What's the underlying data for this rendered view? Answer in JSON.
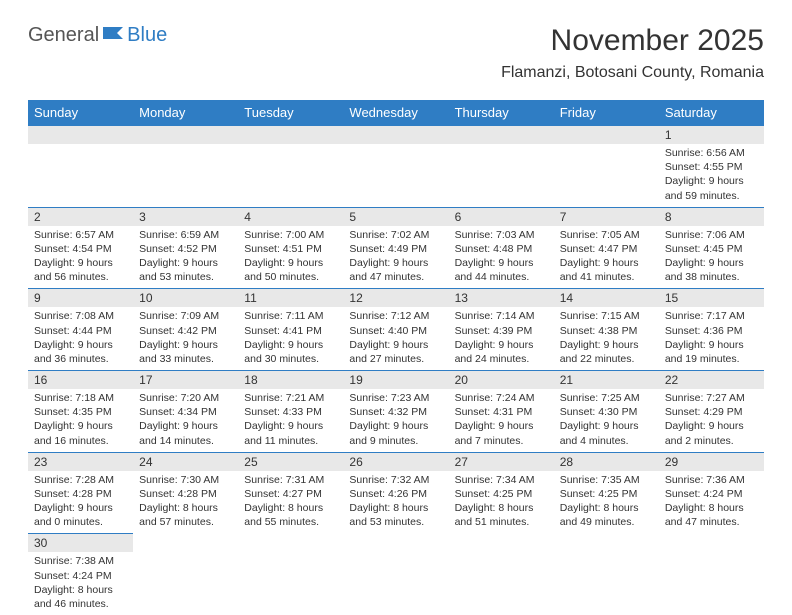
{
  "logo": {
    "part1": "General",
    "part2": "Blue"
  },
  "title": "November 2025",
  "location": "Flamanzi, Botosani County, Romania",
  "colors": {
    "header_bg": "#2f7dc4",
    "header_text": "#ffffff",
    "daynum_bg": "#e8e8e8",
    "border": "#2f7dc4"
  },
  "daysOfWeek": [
    "Sunday",
    "Monday",
    "Tuesday",
    "Wednesday",
    "Thursday",
    "Friday",
    "Saturday"
  ],
  "weeks": [
    [
      null,
      null,
      null,
      null,
      null,
      null,
      {
        "n": "1",
        "sr": "Sunrise: 6:56 AM",
        "ss": "Sunset: 4:55 PM",
        "d1": "Daylight: 9 hours",
        "d2": "and 59 minutes."
      }
    ],
    [
      {
        "n": "2",
        "sr": "Sunrise: 6:57 AM",
        "ss": "Sunset: 4:54 PM",
        "d1": "Daylight: 9 hours",
        "d2": "and 56 minutes."
      },
      {
        "n": "3",
        "sr": "Sunrise: 6:59 AM",
        "ss": "Sunset: 4:52 PM",
        "d1": "Daylight: 9 hours",
        "d2": "and 53 minutes."
      },
      {
        "n": "4",
        "sr": "Sunrise: 7:00 AM",
        "ss": "Sunset: 4:51 PM",
        "d1": "Daylight: 9 hours",
        "d2": "and 50 minutes."
      },
      {
        "n": "5",
        "sr": "Sunrise: 7:02 AM",
        "ss": "Sunset: 4:49 PM",
        "d1": "Daylight: 9 hours",
        "d2": "and 47 minutes."
      },
      {
        "n": "6",
        "sr": "Sunrise: 7:03 AM",
        "ss": "Sunset: 4:48 PM",
        "d1": "Daylight: 9 hours",
        "d2": "and 44 minutes."
      },
      {
        "n": "7",
        "sr": "Sunrise: 7:05 AM",
        "ss": "Sunset: 4:47 PM",
        "d1": "Daylight: 9 hours",
        "d2": "and 41 minutes."
      },
      {
        "n": "8",
        "sr": "Sunrise: 7:06 AM",
        "ss": "Sunset: 4:45 PM",
        "d1": "Daylight: 9 hours",
        "d2": "and 38 minutes."
      }
    ],
    [
      {
        "n": "9",
        "sr": "Sunrise: 7:08 AM",
        "ss": "Sunset: 4:44 PM",
        "d1": "Daylight: 9 hours",
        "d2": "and 36 minutes."
      },
      {
        "n": "10",
        "sr": "Sunrise: 7:09 AM",
        "ss": "Sunset: 4:42 PM",
        "d1": "Daylight: 9 hours",
        "d2": "and 33 minutes."
      },
      {
        "n": "11",
        "sr": "Sunrise: 7:11 AM",
        "ss": "Sunset: 4:41 PM",
        "d1": "Daylight: 9 hours",
        "d2": "and 30 minutes."
      },
      {
        "n": "12",
        "sr": "Sunrise: 7:12 AM",
        "ss": "Sunset: 4:40 PM",
        "d1": "Daylight: 9 hours",
        "d2": "and 27 minutes."
      },
      {
        "n": "13",
        "sr": "Sunrise: 7:14 AM",
        "ss": "Sunset: 4:39 PM",
        "d1": "Daylight: 9 hours",
        "d2": "and 24 minutes."
      },
      {
        "n": "14",
        "sr": "Sunrise: 7:15 AM",
        "ss": "Sunset: 4:38 PM",
        "d1": "Daylight: 9 hours",
        "d2": "and 22 minutes."
      },
      {
        "n": "15",
        "sr": "Sunrise: 7:17 AM",
        "ss": "Sunset: 4:36 PM",
        "d1": "Daylight: 9 hours",
        "d2": "and 19 minutes."
      }
    ],
    [
      {
        "n": "16",
        "sr": "Sunrise: 7:18 AM",
        "ss": "Sunset: 4:35 PM",
        "d1": "Daylight: 9 hours",
        "d2": "and 16 minutes."
      },
      {
        "n": "17",
        "sr": "Sunrise: 7:20 AM",
        "ss": "Sunset: 4:34 PM",
        "d1": "Daylight: 9 hours",
        "d2": "and 14 minutes."
      },
      {
        "n": "18",
        "sr": "Sunrise: 7:21 AM",
        "ss": "Sunset: 4:33 PM",
        "d1": "Daylight: 9 hours",
        "d2": "and 11 minutes."
      },
      {
        "n": "19",
        "sr": "Sunrise: 7:23 AM",
        "ss": "Sunset: 4:32 PM",
        "d1": "Daylight: 9 hours",
        "d2": "and 9 minutes."
      },
      {
        "n": "20",
        "sr": "Sunrise: 7:24 AM",
        "ss": "Sunset: 4:31 PM",
        "d1": "Daylight: 9 hours",
        "d2": "and 7 minutes."
      },
      {
        "n": "21",
        "sr": "Sunrise: 7:25 AM",
        "ss": "Sunset: 4:30 PM",
        "d1": "Daylight: 9 hours",
        "d2": "and 4 minutes."
      },
      {
        "n": "22",
        "sr": "Sunrise: 7:27 AM",
        "ss": "Sunset: 4:29 PM",
        "d1": "Daylight: 9 hours",
        "d2": "and 2 minutes."
      }
    ],
    [
      {
        "n": "23",
        "sr": "Sunrise: 7:28 AM",
        "ss": "Sunset: 4:28 PM",
        "d1": "Daylight: 9 hours",
        "d2": "and 0 minutes."
      },
      {
        "n": "24",
        "sr": "Sunrise: 7:30 AM",
        "ss": "Sunset: 4:28 PM",
        "d1": "Daylight: 8 hours",
        "d2": "and 57 minutes."
      },
      {
        "n": "25",
        "sr": "Sunrise: 7:31 AM",
        "ss": "Sunset: 4:27 PM",
        "d1": "Daylight: 8 hours",
        "d2": "and 55 minutes."
      },
      {
        "n": "26",
        "sr": "Sunrise: 7:32 AM",
        "ss": "Sunset: 4:26 PM",
        "d1": "Daylight: 8 hours",
        "d2": "and 53 minutes."
      },
      {
        "n": "27",
        "sr": "Sunrise: 7:34 AM",
        "ss": "Sunset: 4:25 PM",
        "d1": "Daylight: 8 hours",
        "d2": "and 51 minutes."
      },
      {
        "n": "28",
        "sr": "Sunrise: 7:35 AM",
        "ss": "Sunset: 4:25 PM",
        "d1": "Daylight: 8 hours",
        "d2": "and 49 minutes."
      },
      {
        "n": "29",
        "sr": "Sunrise: 7:36 AM",
        "ss": "Sunset: 4:24 PM",
        "d1": "Daylight: 8 hours",
        "d2": "and 47 minutes."
      }
    ],
    [
      {
        "n": "30",
        "sr": "Sunrise: 7:38 AM",
        "ss": "Sunset: 4:24 PM",
        "d1": "Daylight: 8 hours",
        "d2": "and 46 minutes."
      },
      null,
      null,
      null,
      null,
      null,
      null
    ]
  ]
}
